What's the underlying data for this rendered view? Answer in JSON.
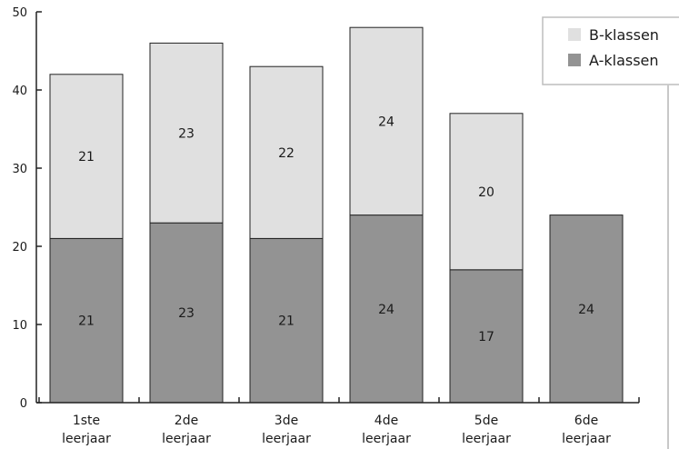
{
  "chart_data": {
    "type": "bar",
    "stacked": true,
    "categories": [
      [
        "1ste",
        "leerjaar"
      ],
      [
        "2de",
        "leerjaar"
      ],
      [
        "3de",
        "leerjaar"
      ],
      [
        "4de",
        "leerjaar"
      ],
      [
        "5de",
        "leerjaar"
      ],
      [
        "6de",
        "leerjaar"
      ]
    ],
    "series": [
      {
        "name": "A-klassen",
        "values": [
          21,
          23,
          21,
          24,
          17,
          24
        ],
        "color": "#939393"
      },
      {
        "name": "B-klassen",
        "values": [
          21,
          23,
          22,
          24,
          20,
          0
        ],
        "color": "#e0e0e0"
      }
    ],
    "ylim": [
      0,
      50
    ],
    "yticks": [
      0,
      10,
      20,
      30,
      40,
      50
    ],
    "legend": {
      "position": "top-right",
      "order": [
        "B-klassen",
        "A-klassen"
      ]
    },
    "grid": false
  }
}
